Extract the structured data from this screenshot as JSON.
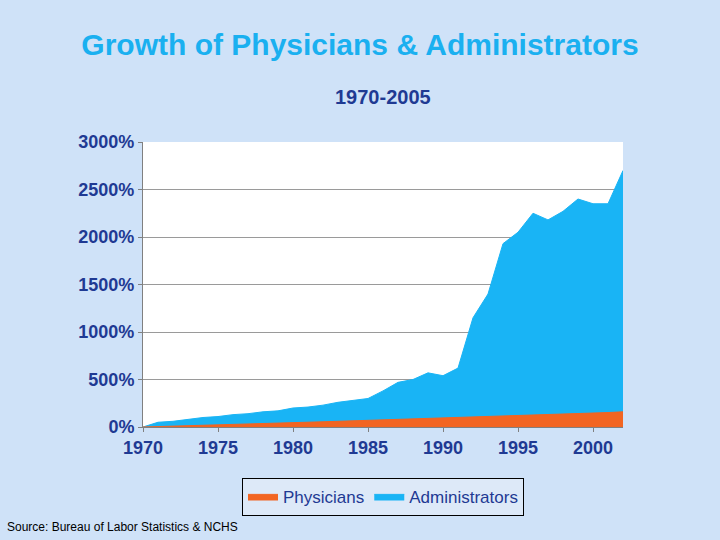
{
  "chart_data": {
    "type": "area",
    "title": "Growth of Physicians & Administrators",
    "subtitle": "1970-2005",
    "annotations": [
      {
        "text": "Source: Bureau of Labor Statistics & NCHS"
      }
    ],
    "x": [
      1970,
      1971,
      1972,
      1973,
      1974,
      1975,
      1976,
      1977,
      1978,
      1979,
      1980,
      1981,
      1982,
      1983,
      1984,
      1985,
      1986,
      1987,
      1988,
      1989,
      1990,
      1991,
      1992,
      1993,
      1994,
      1995,
      1996,
      1997,
      1998,
      1999,
      2000,
      2001,
      2002
    ],
    "series": [
      {
        "name": "Physicians",
        "color": "#f26522",
        "values": [
          0,
          4,
          8,
          12,
          16,
          20,
          25,
          30,
          34,
          40,
          45,
          50,
          55,
          60,
          65,
          70,
          74,
          78,
          82,
          86,
          90,
          95,
          100,
          105,
          110,
          115,
          122,
          128,
          134,
          140,
          145,
          152,
          160
        ]
      },
      {
        "name": "Administrators",
        "color": "#19b4f5",
        "values": [
          0,
          50,
          60,
          80,
          100,
          110,
          130,
          140,
          160,
          170,
          200,
          210,
          230,
          260,
          280,
          300,
          380,
          470,
          500,
          570,
          540,
          620,
          1150,
          1400,
          1930,
          2050,
          2250,
          2180,
          2270,
          2400,
          2350,
          2350,
          2700
        ]
      }
    ],
    "xlim": [
      1970,
      2002
    ],
    "xticks": [
      1970,
      1975,
      1980,
      1985,
      1990,
      1995,
      2000
    ],
    "ylim": [
      0,
      3000
    ],
    "yticks": [
      {
        "value": 0,
        "label": "0%"
      },
      {
        "value": 500,
        "label": "500%"
      },
      {
        "value": 1000,
        "label": "1000%"
      },
      {
        "value": 1500,
        "label": "1500%"
      },
      {
        "value": 2000,
        "label": "2000%"
      },
      {
        "value": 2500,
        "label": "2500%"
      },
      {
        "value": 3000,
        "label": "3000%"
      }
    ],
    "grid": true,
    "legend": "bottom"
  }
}
